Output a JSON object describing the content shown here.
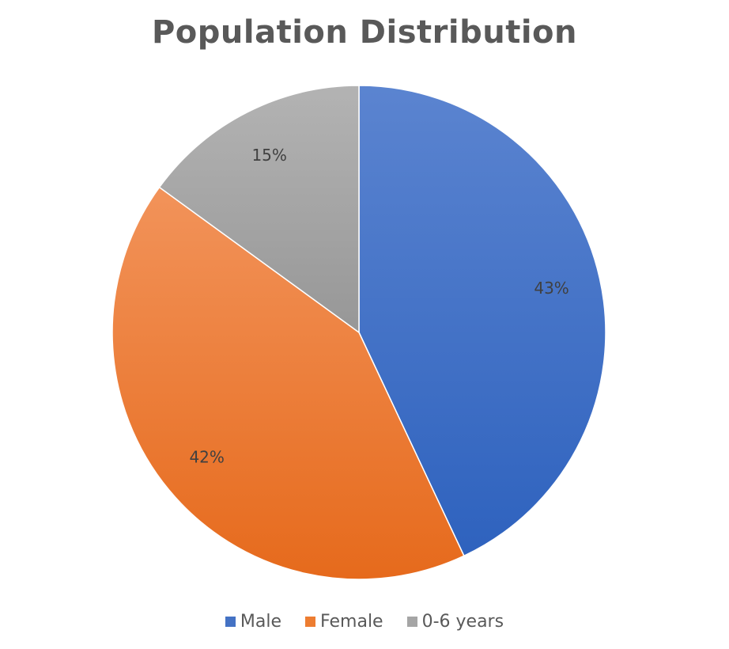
{
  "chart_data": {
    "type": "pie",
    "title": "Population Distribution",
    "categories": [
      "Male",
      "Female",
      "0-6 years"
    ],
    "values": [
      43,
      42,
      15
    ],
    "labels": [
      "43%",
      "42%",
      "15%"
    ],
    "colors": [
      "#4472C4",
      "#ED7D31",
      "#A5A5A5"
    ],
    "legend_position": "bottom",
    "start_angle": "12 o'clock, clockwise"
  }
}
